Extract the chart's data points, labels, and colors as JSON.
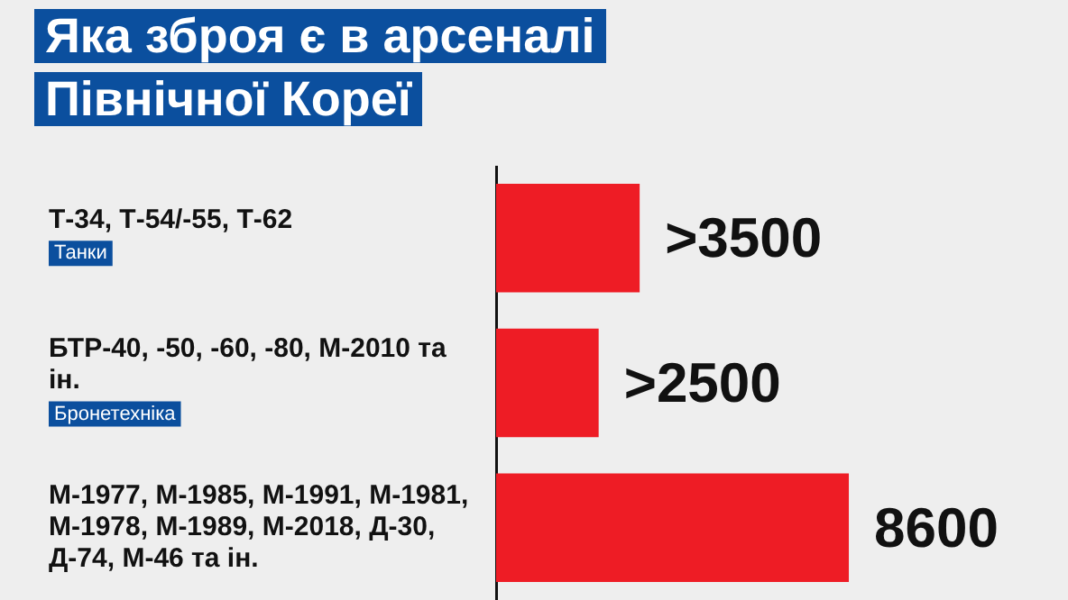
{
  "chart_data": {
    "type": "bar",
    "orientation": "horizontal",
    "title": "Яка зброя є в арсеналі Північної Кореї",
    "categories": [
      "Т-34, Т-54/-55, Т-62",
      "БТР-40, -50, -60, -80, М-2010 та ін.",
      "М-1977, М-1985, М-1991, М-1981, М-1978, М-1989, М-2018, Д-30, Д-74, М-46 та ін."
    ],
    "values": [
      3500,
      2500,
      8600
    ],
    "value_labels": [
      ">3500",
      ">2500",
      "8600"
    ],
    "color": "#ee1c25",
    "annotations": [
      "Танки",
      "Бронетехніка"
    ],
    "legend": false
  }
}
